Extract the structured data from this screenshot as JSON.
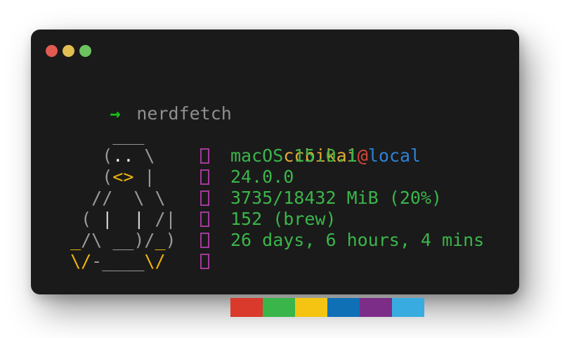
{
  "window": {
    "titlebar_buttons": [
      {
        "name": "close",
        "color": "#e25b52"
      },
      {
        "name": "minimize",
        "color": "#e2be53"
      },
      {
        "name": "zoom",
        "color": "#6cc35f"
      }
    ]
  },
  "prompt": {
    "arrow": "→",
    "command": "nerdfetch"
  },
  "ascii_art": {
    "subject": "tux-penguin",
    "rows": [
      [
        [
          "gray",
          "     ___"
        ]
      ],
      [
        [
          "gray",
          "    ("
        ],
        [
          "white",
          ".."
        ],
        [
          "gray",
          " \\"
        ]
      ],
      [
        [
          "gray",
          "    ("
        ],
        [
          "yellow",
          "<>"
        ],
        [
          "gray",
          " |"
        ]
      ],
      [
        [
          "gray",
          "   //  \\ \\"
        ]
      ],
      [
        [
          "gray",
          "  ( "
        ],
        [
          "bright",
          "|"
        ],
        [
          "gray",
          "  "
        ],
        [
          "bright",
          "|"
        ],
        [
          "gray",
          " /|"
        ]
      ],
      [
        [
          "gray",
          " "
        ],
        [
          "yellow",
          "_"
        ],
        [
          "gray",
          "/\\ __)/"
        ],
        [
          "yellow",
          "_"
        ],
        [
          "gray",
          ")"
        ]
      ],
      [
        [
          "gray",
          " "
        ],
        [
          "yellow",
          "\\/"
        ],
        [
          "gray",
          "-____"
        ],
        [
          "yellow",
          "\\/"
        ]
      ]
    ]
  },
  "info": {
    "user": "ccbikai",
    "separator": "@",
    "host": "local",
    "rows": [
      {
        "icon": "os-icon",
        "text": "macOS 15.0.1"
      },
      {
        "icon": "kernel-icon",
        "text": "24.0.0"
      },
      {
        "icon": "memory-icon",
        "text": "3735/18432 MiB (20%)"
      },
      {
        "icon": "packages-icon",
        "text": "152 (brew)"
      },
      {
        "icon": "uptime-icon",
        "text": "26 days, 6 hours, 4 mins"
      }
    ],
    "palette_icon": "palette-icon",
    "palette": [
      {
        "name": "red",
        "hex": "#d93a2b"
      },
      {
        "name": "green",
        "hex": "#3ab54a"
      },
      {
        "name": "yellow",
        "hex": "#f5c412"
      },
      {
        "name": "blue",
        "hex": "#0f70b6"
      },
      {
        "name": "purple",
        "hex": "#7c2d88"
      },
      {
        "name": "cyan",
        "hex": "#38ace0"
      }
    ]
  },
  "theme": {
    "page_bg": "#ffffff",
    "window_bg": "#1a1a1a",
    "prompt_green": "#15c415",
    "command_gray": "#8f8f8f",
    "art_gray": "#9a9a9a",
    "art_bright": "#d8d8d8",
    "art_white": "#eeeeee",
    "art_yellow": "#f1b40e",
    "user_yellow": "#e3ab35",
    "at_red": "#d6483c",
    "host_blue": "#2e81d6",
    "info_green": "#3bb54a",
    "icon_magenta": "#a33a99"
  }
}
